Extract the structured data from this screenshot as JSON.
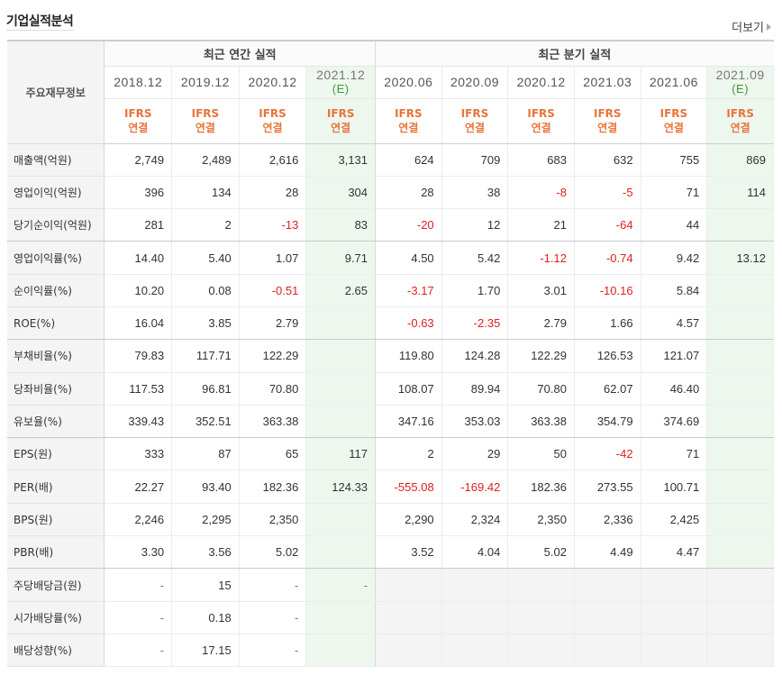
{
  "header": {
    "title": "기업실적분석",
    "more_label": "더보기"
  },
  "table": {
    "row_header_label": "주요재무정보",
    "group_annual": "최근 연간 실적",
    "group_quarterly": "최근 분기 실적",
    "periods": [
      {
        "label": "2018.12",
        "estimate_mark": "",
        "estimate": false
      },
      {
        "label": "2019.12",
        "estimate_mark": "",
        "estimate": false
      },
      {
        "label": "2020.12",
        "estimate_mark": "",
        "estimate": false
      },
      {
        "label": "2021.12",
        "estimate_mark": "(E)",
        "estimate": true
      },
      {
        "label": "2020.06",
        "estimate_mark": "",
        "estimate": false
      },
      {
        "label": "2020.09",
        "estimate_mark": "",
        "estimate": false
      },
      {
        "label": "2020.12",
        "estimate_mark": "",
        "estimate": false
      },
      {
        "label": "2021.03",
        "estimate_mark": "",
        "estimate": false
      },
      {
        "label": "2021.06",
        "estimate_mark": "",
        "estimate": false
      },
      {
        "label": "2021.09",
        "estimate_mark": "(E)",
        "estimate": true
      }
    ],
    "basis_line1": "IFRS",
    "basis_line2": "연결",
    "rows": [
      {
        "label": "매출액(억원)",
        "values": [
          "2,749",
          "2,489",
          "2,616",
          "3,131",
          "624",
          "709",
          "683",
          "632",
          "755",
          "869"
        ]
      },
      {
        "label": "영업이익(억원)",
        "values": [
          "396",
          "134",
          "28",
          "304",
          "28",
          "38",
          "-8",
          "-5",
          "71",
          "114"
        ]
      },
      {
        "label": "당기순이익(억원)",
        "values": [
          "281",
          "2",
          "-13",
          "83",
          "-20",
          "12",
          "21",
          "-64",
          "44",
          ""
        ]
      },
      {
        "label": "영업이익률(%)",
        "values": [
          "14.40",
          "5.40",
          "1.07",
          "9.71",
          "4.50",
          "5.42",
          "-1.12",
          "-0.74",
          "9.42",
          "13.12"
        ]
      },
      {
        "label": "순이익률(%)",
        "values": [
          "10.20",
          "0.08",
          "-0.51",
          "2.65",
          "-3.17",
          "1.70",
          "3.01",
          "-10.16",
          "5.84",
          ""
        ]
      },
      {
        "label": "ROE(%)",
        "values": [
          "16.04",
          "3.85",
          "2.79",
          "",
          "-0.63",
          "-2.35",
          "2.79",
          "1.66",
          "4.57",
          ""
        ]
      },
      {
        "label": "부채비율(%)",
        "values": [
          "79.83",
          "117.71",
          "122.29",
          "",
          "119.80",
          "124.28",
          "122.29",
          "126.53",
          "121.07",
          ""
        ]
      },
      {
        "label": "당좌비율(%)",
        "values": [
          "117.53",
          "96.81",
          "70.80",
          "",
          "108.07",
          "89.94",
          "70.80",
          "62.07",
          "46.40",
          ""
        ]
      },
      {
        "label": "유보율(%)",
        "values": [
          "339.43",
          "352.51",
          "363.38",
          "",
          "347.16",
          "353.03",
          "363.38",
          "354.79",
          "374.69",
          ""
        ]
      },
      {
        "label": "EPS(원)",
        "values": [
          "333",
          "87",
          "65",
          "117",
          "2",
          "29",
          "50",
          "-42",
          "71",
          ""
        ]
      },
      {
        "label": "PER(배)",
        "values": [
          "22.27",
          "93.40",
          "182.36",
          "124.33",
          "-555.08",
          "-169.42",
          "182.36",
          "273.55",
          "100.71",
          ""
        ]
      },
      {
        "label": "BPS(원)",
        "values": [
          "2,246",
          "2,295",
          "2,350",
          "",
          "2,290",
          "2,324",
          "2,350",
          "2,336",
          "2,425",
          ""
        ]
      },
      {
        "label": "PBR(배)",
        "values": [
          "3.30",
          "3.56",
          "5.02",
          "",
          "3.52",
          "4.04",
          "5.02",
          "4.49",
          "4.47",
          ""
        ]
      },
      {
        "label": "주당배당금(원)",
        "values": [
          "-",
          "15",
          "-",
          "-",
          "",
          "",
          "",
          "",
          "",
          ""
        ]
      },
      {
        "label": "시가배당률(%)",
        "values": [
          "-",
          "0.18",
          "-",
          "",
          "",
          "",
          "",
          "",
          "",
          ""
        ]
      },
      {
        "label": "배당성향(%)",
        "values": [
          "-",
          "17.15",
          "-",
          "",
          "",
          "",
          "",
          "",
          "",
          ""
        ]
      }
    ]
  },
  "colors": {
    "negative": "#e02020",
    "basis": "#e8743b",
    "estimate_bg": "#eef7ee",
    "estimate_mark": "#3e9a3e"
  }
}
